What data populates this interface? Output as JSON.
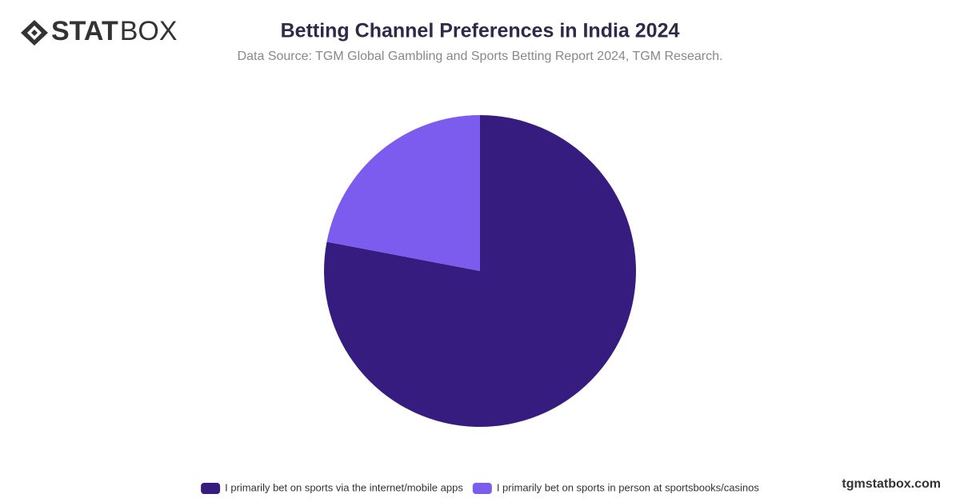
{
  "chart_data": {
    "type": "pie",
    "title": "Betting Channel Preferences in India 2024",
    "subtitle": "Data Source: TGM Global Gambling and Sports Betting Report 2024, TGM Research.",
    "categories": [
      "I primarily bet on sports via the internet/mobile apps",
      "I primarily bet on sports in person at sportsbooks/casinos"
    ],
    "values": [
      78,
      22
    ],
    "colors": [
      "#371c80",
      "#7b5cee"
    ],
    "legend": "bottom"
  },
  "branding": {
    "logo_bold": "STAT",
    "logo_light": "BOX",
    "website": "tgmstatbox.com"
  }
}
